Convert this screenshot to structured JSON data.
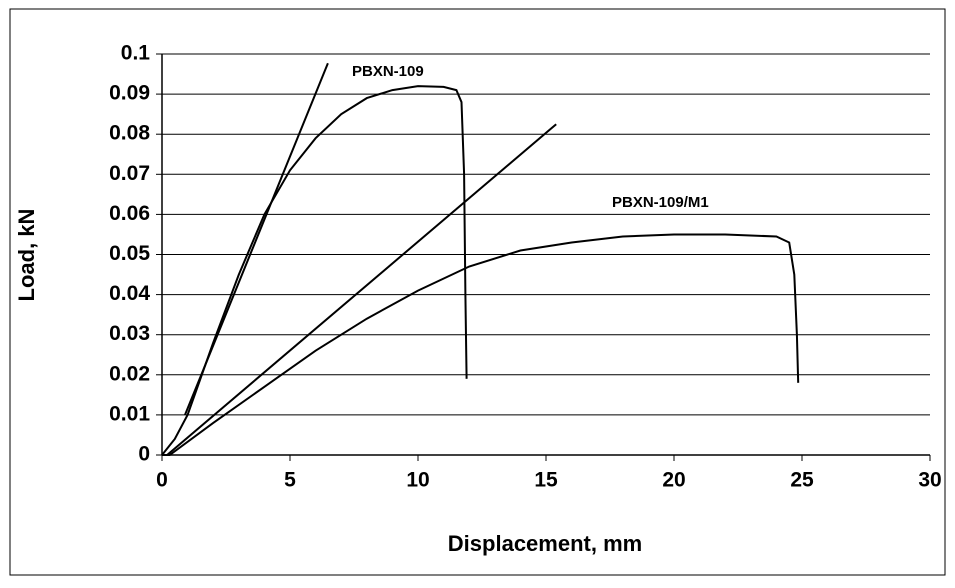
{
  "chart_data": {
    "type": "line",
    "xlabel": "Displacement, mm",
    "ylabel": "Load, kN",
    "xlim": [
      0,
      30
    ],
    "xticks": [
      0,
      5,
      10,
      15,
      20,
      25,
      30
    ],
    "ylim": [
      0,
      0.1
    ],
    "yticks": [
      0,
      0.01,
      0.02,
      0.03,
      0.04,
      0.05,
      0.06,
      0.07,
      0.08,
      0.09,
      0.1
    ],
    "grid": true,
    "series": [
      {
        "name": "PBXN-109",
        "color": "#000000",
        "x": [
          0,
          0.5,
          1,
          2,
          3,
          4,
          5,
          6,
          7,
          8,
          9,
          10,
          11,
          11.5,
          11.7,
          11.8,
          11.85,
          11.9
        ],
        "values": [
          0,
          0.004,
          0.01,
          0.028,
          0.045,
          0.06,
          0.071,
          0.079,
          0.085,
          0.089,
          0.091,
          0.092,
          0.0918,
          0.091,
          0.088,
          0.07,
          0.04,
          0.019
        ]
      },
      {
        "color": "#000000",
        "x": [
          0.9,
          6.48
        ],
        "values": [
          0.01,
          0.0977
        ]
      },
      {
        "name": "PBXN-109/M1",
        "color": "#000000",
        "x": [
          0,
          0.3,
          2,
          4,
          6,
          8,
          10,
          12,
          14,
          16,
          18,
          20,
          22,
          24,
          24.5,
          24.7,
          24.8,
          24.85
        ],
        "values": [
          0,
          0,
          0.008,
          0.017,
          0.026,
          0.034,
          0.041,
          0.047,
          0.051,
          0.053,
          0.0545,
          0.055,
          0.055,
          0.0545,
          0.053,
          0.045,
          0.03,
          0.018
        ]
      },
      {
        "color": "#000000",
        "x": [
          0.2,
          15.4
        ],
        "values": [
          0,
          0.0825
        ]
      }
    ]
  }
}
